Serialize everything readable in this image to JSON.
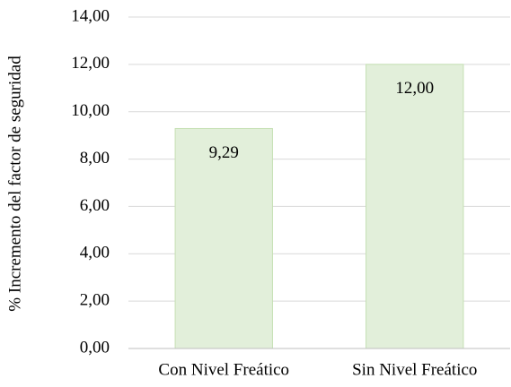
{
  "chart_data": {
    "type": "bar",
    "y_label": "% Incremento del factor de seguridad",
    "categories": [
      "Con Nivel Freático",
      "Sin Nivel Freático"
    ],
    "values": [
      9.29,
      12.0
    ],
    "value_labels": [
      "9,29",
      "12,00"
    ],
    "color": "#e2efda",
    "ylim": [
      0,
      14
    ],
    "yticks": [
      {
        "value": 0,
        "label": "0,00"
      },
      {
        "value": 2,
        "label": "2,00"
      },
      {
        "value": 4,
        "label": "4,00"
      },
      {
        "value": 6,
        "label": "6,00"
      },
      {
        "value": 8,
        "label": "8,00"
      },
      {
        "value": 10,
        "label": "10,00"
      },
      {
        "value": 12,
        "label": "12,00"
      },
      {
        "value": 14,
        "label": "14,00"
      }
    ],
    "grid": true
  }
}
